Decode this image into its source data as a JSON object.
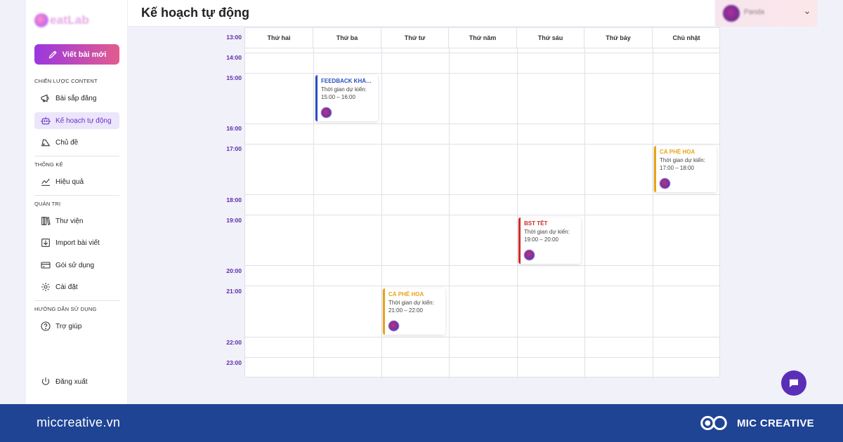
{
  "sidebar": {
    "logo_text": "eatLab",
    "new_post_label": "Viết bài mới",
    "sections": [
      {
        "title": "CHIẾN LƯỢC CONTENT"
      },
      {
        "title": "THỐNG KÊ"
      },
      {
        "title": "QUẢN TRỊ"
      },
      {
        "title": "HƯỚNG DẪN SỬ DỤNG"
      }
    ],
    "items": [
      {
        "label": "Bài sắp đăng",
        "icon": "megaphone-icon"
      },
      {
        "label": "Kế hoạch tự động",
        "icon": "robot-icon",
        "active": true
      },
      {
        "label": "Chủ đề",
        "icon": "tag-icon"
      },
      {
        "label": "Hiệu quả",
        "icon": "chart-line-icon"
      },
      {
        "label": "Thư viện",
        "icon": "library-icon"
      },
      {
        "label": "Import bài viết",
        "icon": "import-icon"
      },
      {
        "label": "Gói sử dụng",
        "icon": "card-icon"
      },
      {
        "label": "Cài đặt",
        "icon": "gear-icon"
      },
      {
        "label": "Trợ giúp",
        "icon": "help-icon"
      }
    ],
    "logout_label": "Đăng xuất"
  },
  "header": {
    "title": "Kế hoạch tự động",
    "user_name": "Panda"
  },
  "calendar": {
    "days": [
      "Thứ hai",
      "Thứ ba",
      "Thứ tư",
      "Thứ năm",
      "Thứ sáu",
      "Thứ bảy",
      "Chủ nhật"
    ],
    "times": [
      "13:00",
      "14:00",
      "15:00",
      "16:00",
      "17:00",
      "18:00",
      "19:00",
      "20:00",
      "21:00",
      "22:00",
      "23:00"
    ],
    "events": [
      {
        "title": "FEEDBACK KHÁCH HÀNG",
        "label": "Thời gian dự kiến:",
        "time": "15:00 – 16:00",
        "color": "#2b4fbf",
        "day": "Thứ ba"
      },
      {
        "title": "CÀ PHÊ HOA",
        "label": "Thời gian dự kiến:",
        "time": "17:00 – 18:00",
        "color": "#e8a417",
        "day": "Chủ nhật"
      },
      {
        "title": "BST TẾT",
        "label": "Thời gian dự kiến:",
        "time": "19:00 – 20:00",
        "color": "#d12a2a",
        "day": "Thứ sáu"
      },
      {
        "title": "CÀ PHÊ HOA",
        "label": "Thời gian dự kiến:",
        "time": "21:00 – 22:00",
        "color": "#e8a417",
        "day": "Thứ tư"
      }
    ]
  },
  "footer": {
    "site": "miccreative.vn",
    "brand": "MIC CREATIVE"
  },
  "colors": {
    "accent": "#6a2fc8",
    "footer_bg": "#1f4494",
    "time_label": "#5b2aa8"
  }
}
